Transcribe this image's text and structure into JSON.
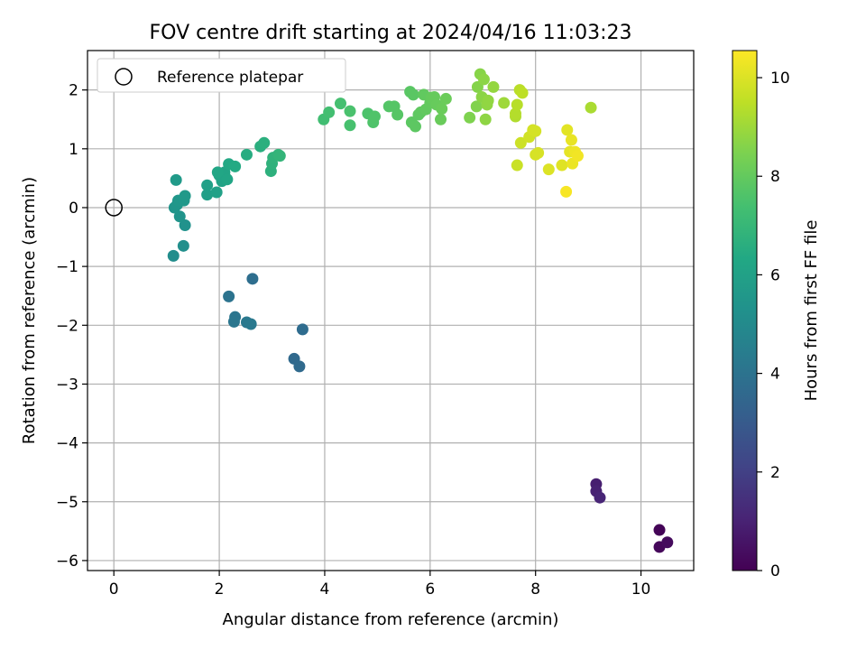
{
  "chart_data": {
    "type": "scatter",
    "title": "FOV centre drift starting at 2024/04/16 11:03:23",
    "xlabel": "Angular distance from reference (arcmin)",
    "ylabel": "Rotation from reference (arcmin)",
    "xlim": [
      -0.5,
      11.0
    ],
    "ylim": [
      -6.17,
      2.67
    ],
    "xticks": [
      0,
      2,
      4,
      6,
      8,
      10
    ],
    "yticks": [
      -6,
      -5,
      -4,
      -3,
      -2,
      -1,
      0,
      1,
      2
    ],
    "grid": true,
    "legend": {
      "location": "top-left",
      "label": "Reference platepar"
    },
    "reference_point": {
      "x": 0,
      "y": 0
    },
    "colorbar": {
      "label": "Hours from first FF file",
      "range": [
        0,
        10.55
      ],
      "ticks": [
        0,
        2,
        4,
        6,
        8,
        10
      ],
      "colormap": "viridis"
    },
    "points": [
      {
        "x": 10.35,
        "y": -5.48,
        "t": 0.1
      },
      {
        "x": 10.35,
        "y": -5.77,
        "t": 0.2
      },
      {
        "x": 10.5,
        "y": -5.69,
        "t": 0.3
      },
      {
        "x": 9.15,
        "y": -4.7,
        "t": 0.9
      },
      {
        "x": 9.15,
        "y": -4.82,
        "t": 1.0
      },
      {
        "x": 9.22,
        "y": -4.93,
        "t": 1.1
      },
      {
        "x": 3.42,
        "y": -2.57,
        "t": 3.6
      },
      {
        "x": 3.52,
        "y": -2.7,
        "t": 3.65
      },
      {
        "x": 3.58,
        "y": -2.07,
        "t": 3.7
      },
      {
        "x": 2.63,
        "y": -1.21,
        "t": 3.8
      },
      {
        "x": 2.18,
        "y": -1.51,
        "t": 4.0
      },
      {
        "x": 2.3,
        "y": -1.86,
        "t": 4.1
      },
      {
        "x": 2.28,
        "y": -1.94,
        "t": 4.15
      },
      {
        "x": 2.52,
        "y": -1.95,
        "t": 4.2
      },
      {
        "x": 2.6,
        "y": -1.98,
        "t": 4.25
      },
      {
        "x": 1.13,
        "y": -0.82,
        "t": 5.1
      },
      {
        "x": 1.32,
        "y": -0.65,
        "t": 5.2
      },
      {
        "x": 1.35,
        "y": -0.3,
        "t": 5.3
      },
      {
        "x": 1.25,
        "y": -0.15,
        "t": 5.4
      },
      {
        "x": 1.15,
        "y": 0.0,
        "t": 5.45
      },
      {
        "x": 1.2,
        "y": 0.05,
        "t": 5.5
      },
      {
        "x": 1.22,
        "y": 0.12,
        "t": 5.55
      },
      {
        "x": 1.33,
        "y": 0.12,
        "t": 5.6
      },
      {
        "x": 1.35,
        "y": 0.2,
        "t": 5.65
      },
      {
        "x": 1.18,
        "y": 0.47,
        "t": 5.7
      },
      {
        "x": 1.77,
        "y": 0.22,
        "t": 5.9
      },
      {
        "x": 1.77,
        "y": 0.38,
        "t": 5.95
      },
      {
        "x": 1.95,
        "y": 0.26,
        "t": 6.0
      },
      {
        "x": 2.05,
        "y": 0.45,
        "t": 6.05
      },
      {
        "x": 2.0,
        "y": 0.55,
        "t": 6.1
      },
      {
        "x": 2.1,
        "y": 0.6,
        "t": 6.15
      },
      {
        "x": 2.15,
        "y": 0.48,
        "t": 6.2
      },
      {
        "x": 1.97,
        "y": 0.6,
        "t": 6.25
      },
      {
        "x": 2.18,
        "y": 0.74,
        "t": 6.35
      },
      {
        "x": 2.3,
        "y": 0.7,
        "t": 6.4
      },
      {
        "x": 2.52,
        "y": 0.9,
        "t": 6.5
      },
      {
        "x": 2.78,
        "y": 1.04,
        "t": 6.6
      },
      {
        "x": 2.85,
        "y": 1.1,
        "t": 6.65
      },
      {
        "x": 2.98,
        "y": 0.62,
        "t": 6.7
      },
      {
        "x": 3.0,
        "y": 0.75,
        "t": 6.75
      },
      {
        "x": 3.02,
        "y": 0.85,
        "t": 6.8
      },
      {
        "x": 3.12,
        "y": 0.9,
        "t": 6.85
      },
      {
        "x": 3.15,
        "y": 0.88,
        "t": 6.9
      },
      {
        "x": 3.98,
        "y": 1.5,
        "t": 7.3
      },
      {
        "x": 4.08,
        "y": 1.62,
        "t": 7.35
      },
      {
        "x": 4.3,
        "y": 1.77,
        "t": 7.4
      },
      {
        "x": 4.48,
        "y": 1.4,
        "t": 7.45
      },
      {
        "x": 4.48,
        "y": 1.64,
        "t": 7.5
      },
      {
        "x": 4.82,
        "y": 1.6,
        "t": 7.55
      },
      {
        "x": 4.92,
        "y": 1.45,
        "t": 7.6
      },
      {
        "x": 4.95,
        "y": 1.55,
        "t": 7.62
      },
      {
        "x": 5.22,
        "y": 1.72,
        "t": 7.7
      },
      {
        "x": 5.32,
        "y": 1.72,
        "t": 7.72
      },
      {
        "x": 5.38,
        "y": 1.58,
        "t": 7.75
      },
      {
        "x": 5.62,
        "y": 1.97,
        "t": 7.8
      },
      {
        "x": 5.68,
        "y": 1.92,
        "t": 7.82
      },
      {
        "x": 5.65,
        "y": 1.45,
        "t": 7.85
      },
      {
        "x": 5.72,
        "y": 1.38,
        "t": 7.87
      },
      {
        "x": 5.78,
        "y": 1.58,
        "t": 7.9
      },
      {
        "x": 5.82,
        "y": 1.62,
        "t": 7.92
      },
      {
        "x": 5.88,
        "y": 1.92,
        "t": 7.95
      },
      {
        "x": 5.92,
        "y": 1.67,
        "t": 7.97
      },
      {
        "x": 6.0,
        "y": 1.78,
        "t": 8.0
      },
      {
        "x": 6.02,
        "y": 1.87,
        "t": 8.02
      },
      {
        "x": 6.08,
        "y": 1.88,
        "t": 8.05
      },
      {
        "x": 6.12,
        "y": 1.75,
        "t": 8.07
      },
      {
        "x": 6.2,
        "y": 1.5,
        "t": 8.1
      },
      {
        "x": 6.22,
        "y": 1.68,
        "t": 8.12
      },
      {
        "x": 6.3,
        "y": 1.85,
        "t": 8.15
      },
      {
        "x": 6.75,
        "y": 1.53,
        "t": 8.5
      },
      {
        "x": 6.88,
        "y": 1.72,
        "t": 8.55
      },
      {
        "x": 6.9,
        "y": 2.05,
        "t": 8.6
      },
      {
        "x": 6.95,
        "y": 2.27,
        "t": 8.65
      },
      {
        "x": 6.98,
        "y": 1.88,
        "t": 8.7
      },
      {
        "x": 7.02,
        "y": 2.18,
        "t": 8.72
      },
      {
        "x": 7.05,
        "y": 1.5,
        "t": 8.75
      },
      {
        "x": 7.08,
        "y": 1.75,
        "t": 8.78
      },
      {
        "x": 7.1,
        "y": 1.82,
        "t": 8.8
      },
      {
        "x": 7.2,
        "y": 2.05,
        "t": 8.85
      },
      {
        "x": 7.4,
        "y": 1.78,
        "t": 9.0
      },
      {
        "x": 7.62,
        "y": 1.55,
        "t": 9.3
      },
      {
        "x": 7.62,
        "y": 1.6,
        "t": 9.35
      },
      {
        "x": 7.65,
        "y": 1.75,
        "t": 9.4
      },
      {
        "x": 7.7,
        "y": 2.0,
        "t": 9.45
      },
      {
        "x": 7.75,
        "y": 1.95,
        "t": 9.5
      },
      {
        "x": 7.65,
        "y": 0.72,
        "t": 9.7
      },
      {
        "x": 7.72,
        "y": 1.1,
        "t": 9.75
      },
      {
        "x": 7.88,
        "y": 1.2,
        "t": 9.8
      },
      {
        "x": 7.95,
        "y": 1.32,
        "t": 9.85
      },
      {
        "x": 8.0,
        "y": 1.3,
        "t": 9.87
      },
      {
        "x": 8.0,
        "y": 0.9,
        "t": 9.9
      },
      {
        "x": 8.05,
        "y": 0.93,
        "t": 9.92
      },
      {
        "x": 8.25,
        "y": 0.65,
        "t": 10.0
      },
      {
        "x": 8.5,
        "y": 0.72,
        "t": 10.05
      },
      {
        "x": 8.6,
        "y": 1.32,
        "t": 10.1
      },
      {
        "x": 8.65,
        "y": 0.95,
        "t": 10.15
      },
      {
        "x": 8.68,
        "y": 1.15,
        "t": 10.2
      },
      {
        "x": 8.7,
        "y": 0.75,
        "t": 10.25
      },
      {
        "x": 8.75,
        "y": 0.95,
        "t": 10.3
      },
      {
        "x": 8.8,
        "y": 0.88,
        "t": 10.35
      },
      {
        "x": 8.58,
        "y": 0.27,
        "t": 10.45
      },
      {
        "x": 9.05,
        "y": 1.7,
        "t": 9.2
      }
    ]
  }
}
